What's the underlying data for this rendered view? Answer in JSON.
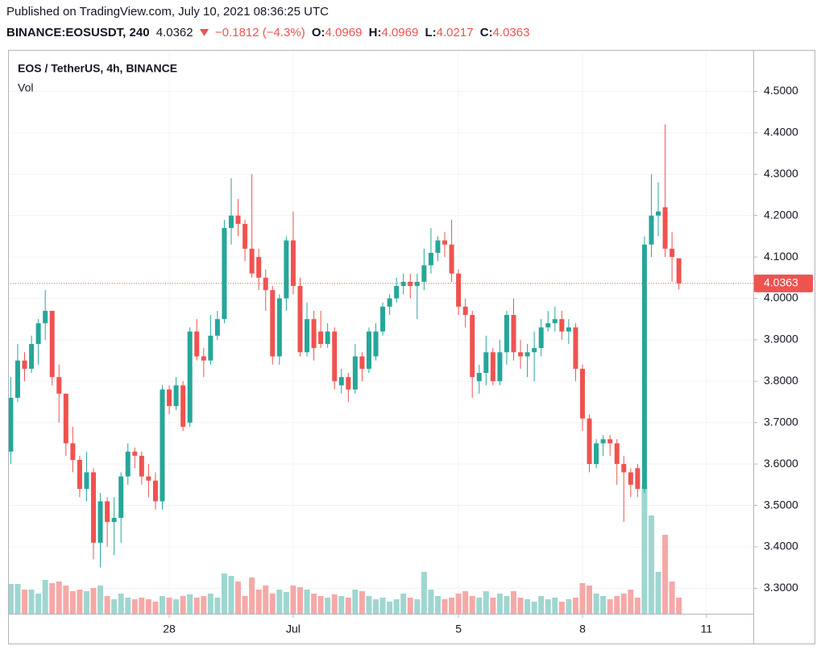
{
  "header": {
    "published": "Published on TradingView.com, July 10, 2021 08:36:25 UTC",
    "symbol": "BINANCE:EOSUSDT, 240",
    "last": "4.0362",
    "change": "−0.1812 (−4.3%)",
    "open_label": "O:",
    "open": "4.0969",
    "high_label": "H:",
    "high": "4.0969",
    "low_label": "L:",
    "low": "4.0217",
    "close_label": "C:",
    "close": "4.0363"
  },
  "chart_data": {
    "type": "candlestick",
    "title": "EOS / TetherUS, 4h, BINANCE",
    "volume_label": "Vol",
    "up_color": "#26a69a",
    "down_color": "#ef5350",
    "volume_up_color": "#9fd6d0",
    "volume_down_color": "#f5a9a7",
    "grid": true,
    "xlim": [
      -0.4,
      107.8
    ],
    "xticks": [
      {
        "value": 23,
        "label": "28"
      },
      {
        "value": 41,
        "label": "Jul"
      },
      {
        "value": 65,
        "label": "5"
      },
      {
        "value": 83,
        "label": "8"
      },
      {
        "value": 101,
        "label": "11"
      }
    ],
    "ylim": [
      3.2385,
      4.6
    ],
    "yticks": [
      {
        "value": 4.5,
        "label": "4.5000"
      },
      {
        "value": 4.4,
        "label": "4.4000"
      },
      {
        "value": 4.3,
        "label": "4.3000"
      },
      {
        "value": 4.2,
        "label": "4.2000"
      },
      {
        "value": 4.1,
        "label": "4.1000"
      },
      {
        "value": 4.0,
        "label": "4.0000"
      },
      {
        "value": 3.9,
        "label": "3.9000"
      },
      {
        "value": 3.8,
        "label": "3.8000"
      },
      {
        "value": 3.7,
        "label": "3.7000"
      },
      {
        "value": 3.6,
        "label": "3.6000"
      },
      {
        "value": 3.5,
        "label": "3.5000"
      },
      {
        "value": 3.4,
        "label": "3.4000"
      },
      {
        "value": 3.3,
        "label": "3.3000"
      }
    ],
    "last_price": 4.0363,
    "volume_lim": [
      0,
      160
    ],
    "open": [
      3.63,
      3.76,
      3.85,
      3.83,
      3.89,
      3.94,
      3.97,
      3.81,
      3.77,
      3.65,
      3.61,
      3.54,
      3.58,
      3.41,
      3.51,
      3.46,
      3.47,
      3.57,
      3.63,
      3.62,
      3.57,
      3.56,
      3.51,
      3.78,
      3.74,
      3.79,
      3.7,
      3.92,
      3.86,
      3.85,
      3.91,
      3.95,
      4.17,
      4.2,
      4.18,
      4.12,
      4.1,
      4.05,
      4.02,
      3.86,
      4.0,
      4.14,
      4.03,
      3.87,
      3.95,
      3.92,
      3.89,
      3.92,
      3.79,
      3.81,
      3.78,
      3.86,
      3.83,
      3.86,
      3.92,
      3.98,
      4.0,
      4.03,
      4.04,
      4.03,
      4.04,
      4.08,
      4.11,
      4.14,
      4.13,
      4.06,
      3.98,
      3.96,
      3.8,
      3.82,
      3.87,
      3.8,
      3.87,
      3.96,
      3.87,
      3.86,
      3.87,
      3.88,
      3.93,
      3.94,
      3.95,
      3.92,
      3.93,
      3.83,
      3.71,
      3.6,
      3.65,
      3.66,
      3.65,
      3.6,
      3.58,
      3.59,
      3.54,
      4.13,
      4.2,
      4.22,
      4.12,
      4.0969
    ],
    "high": [
      3.81,
      3.89,
      3.87,
      3.91,
      3.95,
      4.02,
      3.97,
      3.84,
      3.77,
      3.69,
      3.62,
      3.63,
      3.59,
      3.53,
      3.52,
      3.52,
      3.58,
      3.65,
      3.64,
      3.63,
      3.6,
      3.58,
      3.79,
      3.79,
      3.81,
      3.8,
      3.93,
      3.95,
      3.88,
      3.96,
      3.97,
      4.19,
      4.29,
      4.24,
      4.19,
      4.3,
      4.12,
      4.07,
      4.03,
      4.01,
      4.15,
      4.21,
      4.05,
      3.99,
      3.97,
      3.97,
      3.94,
      3.93,
      3.83,
      3.82,
      3.89,
      3.87,
      3.93,
      3.94,
      3.99,
      4.01,
      4.05,
      4.06,
      4.06,
      4.06,
      4.12,
      4.17,
      4.15,
      4.16,
      4.19,
      4.07,
      4.0,
      3.97,
      3.84,
      3.91,
      3.88,
      3.9,
      3.97,
      4.0,
      3.9,
      3.89,
      3.92,
      3.95,
      3.97,
      3.98,
      3.97,
      3.95,
      3.94,
      3.84,
      3.72,
      3.66,
      3.67,
      3.67,
      3.66,
      3.62,
      3.59,
      3.6,
      4.15,
      4.3,
      4.28,
      4.42,
      4.16,
      4.0969
    ],
    "low": [
      3.6,
      3.75,
      3.8,
      3.82,
      3.84,
      3.9,
      3.79,
      3.7,
      3.62,
      3.58,
      3.52,
      3.51,
      3.37,
      3.35,
      3.4,
      3.38,
      3.41,
      3.55,
      3.59,
      3.55,
      3.52,
      3.49,
      3.49,
      3.72,
      3.73,
      3.68,
      3.69,
      3.85,
      3.81,
      3.84,
      3.9,
      3.94,
      4.13,
      4.15,
      4.09,
      4.05,
      4.02,
      3.97,
      3.84,
      3.84,
      3.97,
      4.01,
      3.86,
      3.86,
      3.85,
      3.88,
      3.88,
      3.78,
      3.77,
      3.75,
      3.77,
      3.8,
      3.82,
      3.85,
      3.91,
      3.96,
      3.99,
      4.01,
      4.0,
      3.95,
      4.02,
      4.06,
      4.09,
      4.1,
      4.04,
      3.96,
      3.93,
      3.76,
      3.77,
      3.79,
      3.79,
      3.79,
      3.84,
      3.85,
      3.83,
      3.81,
      3.8,
      3.86,
      3.92,
      3.92,
      3.9,
      3.89,
      3.8,
      3.68,
      3.58,
      3.59,
      3.62,
      3.62,
      3.55,
      3.46,
      3.52,
      3.52,
      3.53,
      4.1,
      4.15,
      4.1,
      4.04,
      4.0217
    ],
    "close": [
      3.76,
      3.85,
      3.83,
      3.89,
      3.94,
      3.97,
      3.81,
      3.77,
      3.65,
      3.61,
      3.54,
      3.58,
      3.41,
      3.51,
      3.46,
      3.47,
      3.57,
      3.63,
      3.62,
      3.57,
      3.56,
      3.51,
      3.78,
      3.74,
      3.79,
      3.69,
      3.92,
      3.86,
      3.85,
      3.91,
      3.95,
      4.17,
      4.2,
      4.18,
      4.12,
      4.06,
      4.05,
      4.02,
      3.86,
      4.0,
      4.14,
      4.03,
      3.87,
      3.95,
      3.88,
      3.89,
      3.92,
      3.8,
      3.81,
      3.78,
      3.86,
      3.83,
      3.92,
      3.92,
      3.98,
      4.0,
      4.03,
      4.04,
      4.03,
      4.04,
      4.08,
      4.11,
      4.14,
      4.13,
      4.06,
      3.98,
      3.96,
      3.81,
      3.82,
      3.87,
      3.8,
      3.87,
      3.96,
      3.87,
      3.86,
      3.87,
      3.88,
      3.93,
      3.94,
      3.95,
      3.92,
      3.93,
      3.83,
      3.71,
      3.6,
      3.65,
      3.66,
      3.65,
      3.6,
      3.58,
      3.55,
      3.54,
      4.13,
      4.2,
      4.21,
      4.12,
      4.1,
      4.0363
    ],
    "volume": [
      37,
      37,
      30,
      30,
      25,
      42,
      38,
      40,
      35,
      28,
      30,
      28,
      32,
      35,
      22,
      18,
      25,
      20,
      18,
      20,
      18,
      15,
      22,
      20,
      18,
      22,
      24,
      20,
      22,
      25,
      20,
      50,
      47,
      40,
      22,
      45,
      30,
      35,
      25,
      30,
      27,
      35,
      33,
      30,
      25,
      22,
      20,
      24,
      22,
      20,
      30,
      28,
      22,
      18,
      20,
      15,
      18,
      25,
      20,
      18,
      52,
      30,
      22,
      18,
      20,
      25,
      28,
      22,
      20,
      28,
      20,
      25,
      22,
      28,
      20,
      18,
      15,
      22,
      18,
      20,
      15,
      18,
      20,
      38,
      35,
      25,
      22,
      18,
      22,
      25,
      30,
      20,
      160,
      122,
      52,
      98,
      40,
      20
    ]
  }
}
